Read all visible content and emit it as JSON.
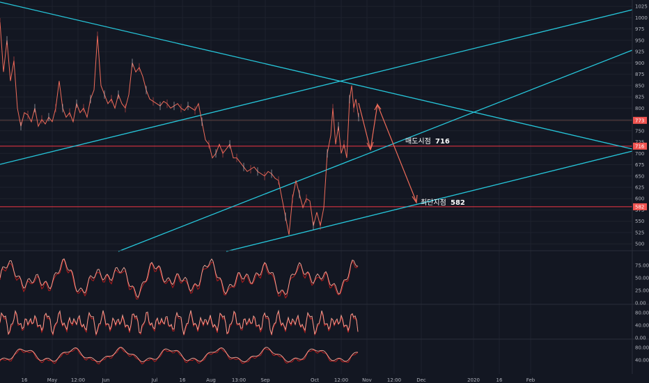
{
  "chart_data": {
    "type": "line",
    "main_panel": {
      "y_ticks": [
        1025,
        1000,
        975,
        950,
        925,
        900,
        875,
        850,
        825,
        800,
        775,
        750,
        725,
        700,
        675,
        650,
        625,
        600,
        575,
        550,
        525,
        500
      ],
      "ylim": [
        488,
        1036
      ],
      "grid": true,
      "price_tags": [
        {
          "label": "773",
          "value": 773,
          "color": "#ef5350"
        },
        {
          "label": "716",
          "value": 716,
          "color": "#ef5350"
        },
        {
          "label": "582",
          "value": 582,
          "color": "#ef5350"
        }
      ],
      "horizontal_lines": [
        {
          "value": 716,
          "color": "#f23645"
        },
        {
          "value": 582,
          "color": "#f23645"
        },
        {
          "value": 773,
          "color": "#5d4040"
        }
      ],
      "annotations": [
        {
          "text": "매도시점",
          "value": "716"
        },
        {
          "text": "최단지점",
          "value": "582"
        }
      ],
      "series": [
        {
          "name": "",
          "color": "#ef6c5a",
          "points": [
            [
              0,
              990
            ],
            [
              5,
              880
            ],
            [
              10,
              950
            ],
            [
              15,
              860
            ],
            [
              20,
              905
            ],
            [
              25,
              800
            ],
            [
              30,
              760
            ],
            [
              35,
              790
            ],
            [
              40,
              785
            ],
            [
              45,
              770
            ],
            [
              50,
              800
            ],
            [
              55,
              760
            ],
            [
              60,
              775
            ],
            [
              65,
              765
            ],
            [
              70,
              780
            ],
            [
              75,
              770
            ],
            [
              80,
              800
            ],
            [
              85,
              860
            ],
            [
              90,
              800
            ],
            [
              95,
              780
            ],
            [
              100,
              790
            ],
            [
              105,
              770
            ],
            [
              110,
              810
            ],
            [
              115,
              790
            ],
            [
              120,
              800
            ],
            [
              125,
              780
            ],
            [
              130,
              820
            ],
            [
              135,
              840
            ],
            [
              140,
              960
            ],
            [
              145,
              850
            ],
            [
              150,
              830
            ],
            [
              155,
              810
            ],
            [
              160,
              820
            ],
            [
              165,
              800
            ],
            [
              170,
              830
            ],
            [
              175,
              810
            ],
            [
              180,
              800
            ],
            [
              185,
              830
            ],
            [
              190,
              900
            ],
            [
              195,
              880
            ],
            [
              200,
              890
            ],
            [
              205,
              870
            ],
            [
              210,
              840
            ],
            [
              215,
              820
            ],
            [
              220,
              815
            ],
            [
              225,
              810
            ],
            [
              230,
              805
            ],
            [
              235,
              815
            ],
            [
              240,
              810
            ],
            [
              245,
              800
            ],
            [
              250,
              805
            ],
            [
              255,
              810
            ],
            [
              260,
              800
            ],
            [
              265,
              795
            ],
            [
              270,
              805
            ],
            [
              275,
              800
            ],
            [
              280,
              795
            ],
            [
              285,
              810
            ],
            [
              290,
              770
            ],
            [
              295,
              730
            ],
            [
              300,
              720
            ],
            [
              305,
              690
            ],
            [
              310,
              700
            ],
            [
              315,
              720
            ],
            [
              320,
              700
            ],
            [
              325,
              710
            ],
            [
              330,
              720
            ],
            [
              335,
              690
            ],
            [
              340,
              690
            ],
            [
              345,
              680
            ],
            [
              350,
              670
            ],
            [
              355,
              660
            ],
            [
              360,
              665
            ],
            [
              365,
              670
            ],
            [
              370,
              660
            ],
            [
              375,
              655
            ],
            [
              380,
              650
            ],
            [
              385,
              660
            ],
            [
              390,
              655
            ],
            [
              395,
              645
            ],
            [
              400,
              640
            ],
            [
              405,
              600
            ],
            [
              410,
              560
            ],
            [
              415,
              520
            ],
            [
              420,
              600
            ],
            [
              425,
              640
            ],
            [
              430,
              610
            ],
            [
              435,
              580
            ],
            [
              440,
              600
            ],
            [
              445,
              595
            ],
            [
              450,
              540
            ],
            [
              455,
              570
            ],
            [
              460,
              540
            ],
            [
              465,
              580
            ],
            [
              470,
              700
            ],
            [
              475,
              740
            ],
            [
              478,
              800
            ],
            [
              482,
              720
            ],
            [
              486,
              760
            ],
            [
              490,
              700
            ],
            [
              494,
              720
            ],
            [
              498,
              690
            ],
            [
              502,
              820
            ],
            [
              505,
              850
            ],
            [
              508,
              800
            ],
            [
              511,
              820
            ],
            [
              515,
              780
            ]
          ]
        }
      ]
    },
    "trend_lines": [
      {
        "name": "",
        "color": "#26c6da"
      },
      {
        "name": "",
        "color": "#26c6da"
      },
      {
        "name": "",
        "color": "#26c6da"
      },
      {
        "name": "",
        "color": "#26c6da"
      }
    ],
    "projection_arrows": {
      "color": "#ef6c5a"
    },
    "oscillators": [
      {
        "name": "",
        "y_ticks": [
          75,
          50,
          25,
          0
        ],
        "tick_labels": [
          "75.00",
          "50.00",
          "25.00",
          "0.00"
        ],
        "ylim": [
          0,
          100
        ]
      },
      {
        "name": "",
        "y_ticks": [
          80,
          40,
          0
        ],
        "tick_labels": [
          "80.00",
          "40.00",
          "0.00"
        ],
        "ylim": [
          0,
          100
        ]
      },
      {
        "name": "",
        "y_ticks": [
          80,
          40
        ],
        "tick_labels": [
          "80.00",
          "40.00"
        ],
        "ylim": [
          0,
          100
        ]
      }
    ],
    "x_tick_labels": [
      "16",
      "May",
      "12:00",
      "Jun",
      "Jul",
      "16",
      "Aug",
      "13:00",
      "Sep",
      "Oct",
      "12:00",
      "Nov",
      "12:00",
      "Dec",
      "2020",
      "16",
      "Feb"
    ]
  }
}
